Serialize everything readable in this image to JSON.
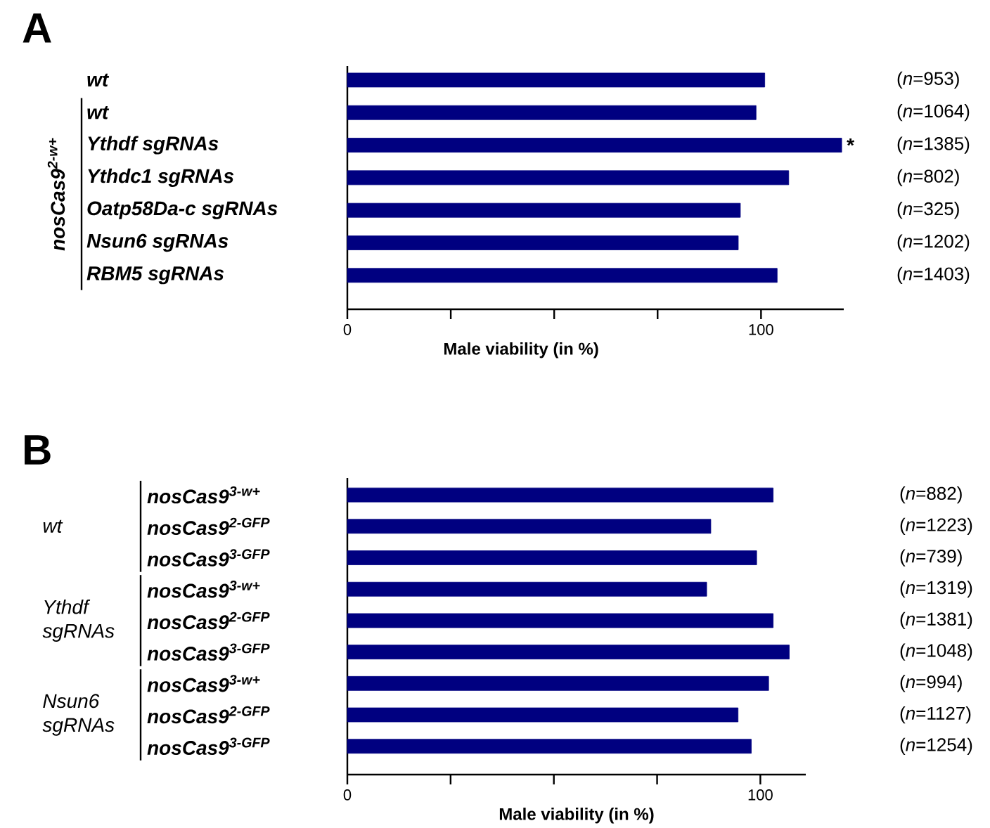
{
  "chart_data": [
    {
      "type": "bar",
      "orientation": "horizontal",
      "title": "A",
      "xlabel": "Male viability (in %)",
      "categories": [
        "wt",
        "wt",
        "Ythdf sgRNAs",
        "Ythdc1 sgRNAs",
        "Oatp58Da-c sgRNAs",
        "Nsun6 sgRNAs",
        "RBM5 sgRNAs"
      ],
      "values": [
        100.9,
        98.8,
        119.5,
        106.7,
        95.0,
        94.5,
        103.9
      ],
      "color": "#000080",
      "xlim": [
        0,
        120
      ],
      "xticks": [
        0,
        {
          "value": 25,
          "label": null
        },
        {
          "value": 50,
          "label": null
        },
        {
          "value": 75,
          "label": null
        },
        100
      ],
      "annotations": [
        "(*n*=953)",
        "(*n*=1064)",
        "(*n*=1385)",
        "(*n*=802)",
        "(*n*=325)",
        "(*n*=1202)",
        "(*n*=1403)",
        "nosCas9$^{2-w+}$",
        {
          "text": "*",
          "x": 119.5,
          "y": "Ythdf sgRNAs"
        }
      ]
    },
    {
      "type": "bar",
      "orientation": "horizontal",
      "title": "B",
      "xlabel": "Male viability (in %)",
      "categories": [
        "nosCas9$^{3-w+}$",
        "nosCas9$^{2-GFP}$",
        "nosCas9$^{3-GFP}$",
        "nosCas9$^{3-w+}$",
        "nosCas9$^{2-GFP}$",
        "nosCas9$^{3-GFP}$",
        "nosCas9$^{3-w+}$",
        "nosCas9$^{2-GFP}$",
        "nosCas9$^{3-GFP}$"
      ],
      "values": [
        103.1,
        88.0,
        99.1,
        87.0,
        103.1,
        107.0,
        102.0,
        94.6,
        97.8
      ],
      "color": "#000080",
      "xlim": [
        0,
        111
      ],
      "xticks": [
        0,
        {
          "value": 25,
          "label": null
        },
        {
          "value": 50,
          "label": null
        },
        {
          "value": 75,
          "label": null
        },
        100
      ],
      "annotations": [
        "(*n*=882)",
        "(*n*=1223)",
        "(*n*=739)",
        "(*n*=1319)",
        "(*n*=1381)",
        "(*n*=1048)",
        "(*n*=994)",
        "(*n*=1127)",
        "(*n*=1254)",
        "wt",
        "Ythdf sgRNAs",
        "Nsun6 sgRNAs"
      ]
    }
  ]
}
